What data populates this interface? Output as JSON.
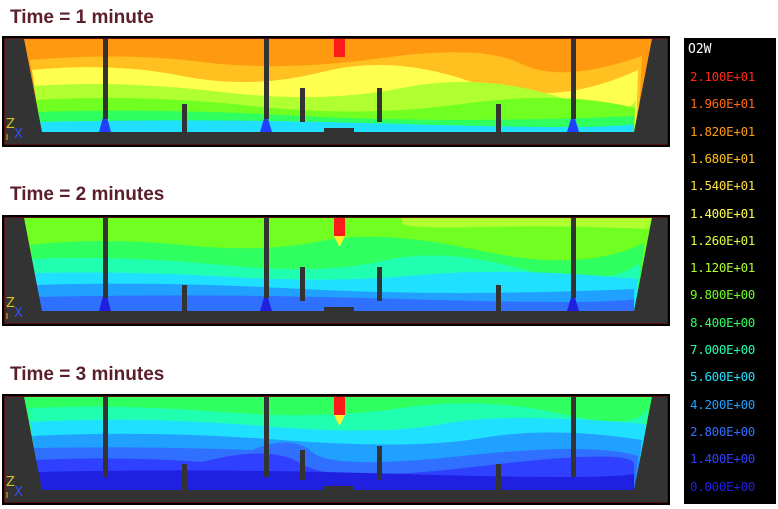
{
  "panels": [
    {
      "title": "Time = 1 minute"
    },
    {
      "title": "Time = 2 minutes"
    },
    {
      "title": "Time = 3 minutes"
    }
  ],
  "legend": {
    "title": "O2W",
    "entries": [
      {
        "label": "2.100E+01",
        "color": "#ff2a1a"
      },
      {
        "label": "1.960E+01",
        "color": "#ff6a10"
      },
      {
        "label": "1.820E+01",
        "color": "#ff9a10"
      },
      {
        "label": "1.680E+01",
        "color": "#ffc020"
      },
      {
        "label": "1.540E+01",
        "color": "#ffe040"
      },
      {
        "label": "1.400E+01",
        "color": "#ffff50"
      },
      {
        "label": "1.260E+01",
        "color": "#e0ff40"
      },
      {
        "label": "1.120E+01",
        "color": "#b0ff30"
      },
      {
        "label": "9.800E+00",
        "color": "#70ff20"
      },
      {
        "label": "8.400E+00",
        "color": "#30ff60"
      },
      {
        "label": "7.000E+00",
        "color": "#20ffb0"
      },
      {
        "label": "5.600E+00",
        "color": "#20e0ff"
      },
      {
        "label": "4.200E+00",
        "color": "#20a0ff"
      },
      {
        "label": "2.800E+00",
        "color": "#3070ff"
      },
      {
        "label": "1.400E+00",
        "color": "#3040ff"
      },
      {
        "label": "0.000E+00",
        "color": "#2020e0"
      }
    ]
  },
  "axis_labels": {
    "z": "Z",
    "x": "X"
  }
}
